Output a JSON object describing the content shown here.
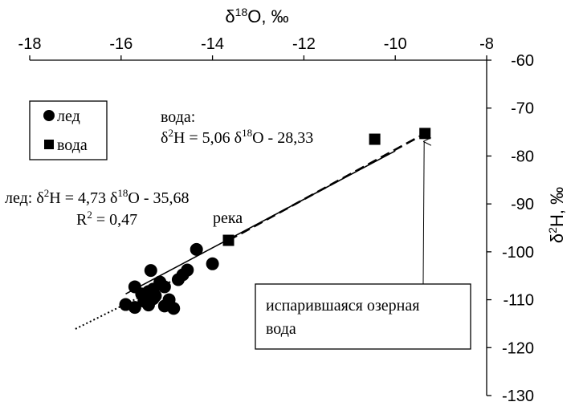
{
  "chart_data": {
    "type": "scatter",
    "x_axis": {
      "title": "δ18O, ‰",
      "title_parts": {
        "delta": "δ",
        "sup": "18",
        "rest": "O, ‰"
      },
      "range": [
        -18,
        -8
      ],
      "ticks": [
        -18,
        -16,
        -14,
        -12,
        -10,
        -8
      ],
      "position": "top"
    },
    "y_axis": {
      "title": "δ2H, ‰",
      "title_parts": {
        "delta": "δ",
        "sup": "2",
        "rest": "H, ‰"
      },
      "range": [
        -130,
        -60
      ],
      "ticks": [
        -60,
        -70,
        -80,
        -90,
        -100,
        -110,
        -120,
        -130
      ],
      "position": "right"
    },
    "grid": false,
    "legend": {
      "placement": "top-left",
      "entries": [
        {
          "label": "лед",
          "marker": "circle"
        },
        {
          "label": "вода",
          "marker": "square"
        }
      ]
    },
    "series": [
      {
        "name": "лед",
        "marker": "circle",
        "points": [
          [
            -15.9,
            -111
          ],
          [
            -15.7,
            -107.3
          ],
          [
            -15.7,
            -111.6
          ],
          [
            -15.55,
            -108.8
          ],
          [
            -15.5,
            -110.3
          ],
          [
            -15.4,
            -111.1
          ],
          [
            -15.4,
            -108.3
          ],
          [
            -15.3,
            -109.8
          ],
          [
            -15.3,
            -107.8
          ],
          [
            -15.35,
            -103.9
          ],
          [
            -15.25,
            -109.2
          ],
          [
            -15.15,
            -106.3
          ],
          [
            -15.05,
            -107.3
          ],
          [
            -15.05,
            -111.3
          ],
          [
            -14.95,
            -110
          ],
          [
            -14.85,
            -111.8
          ],
          [
            -14.75,
            -105.8
          ],
          [
            -14.65,
            -104.8
          ],
          [
            -14.55,
            -103.8
          ],
          [
            -14.35,
            -99.5
          ],
          [
            -14.0,
            -102.5
          ]
        ]
      },
      {
        "name": "вода",
        "marker": "square",
        "points": [
          [
            -13.65,
            -97.6
          ],
          [
            -10.45,
            -76.5
          ],
          [
            -9.35,
            -75.3
          ]
        ]
      }
    ],
    "trendlines": [
      {
        "series": "лед",
        "style": "dotted",
        "slope": 4.73,
        "intercept": -35.68,
        "x_range": [
          -17.0,
          -14.6
        ]
      },
      {
        "series": "вода",
        "style": "solid",
        "slope": 5.06,
        "intercept": -28.33,
        "x_range": [
          -15.9,
          -10.0
        ]
      },
      {
        "series": "evaporation",
        "style": "dashed",
        "from": [
          -13.65,
          -97.6
        ],
        "to": [
          -9.35,
          -75.3
        ]
      }
    ],
    "annotations": {
      "water_label": "вода:",
      "water_eq": {
        "left": "δ",
        "sup1": "2",
        "mid": "H = 5,06 δ",
        "sup2": "18",
        "right": "O - 28,33"
      },
      "ice_eq": {
        "left": "лед: δ",
        "sup1": "2",
        "mid": "H = 4,73 δ",
        "sup2": "18",
        "right": "O - 35,68"
      },
      "ice_r2": {
        "left": "R",
        "sup": "2",
        "right": " = 0,47"
      },
      "river_label": "река",
      "lake_callout": [
        "испарившаяся озерная",
        "вода"
      ],
      "arrow_target": [
        -9.35,
        -75.3
      ]
    }
  }
}
